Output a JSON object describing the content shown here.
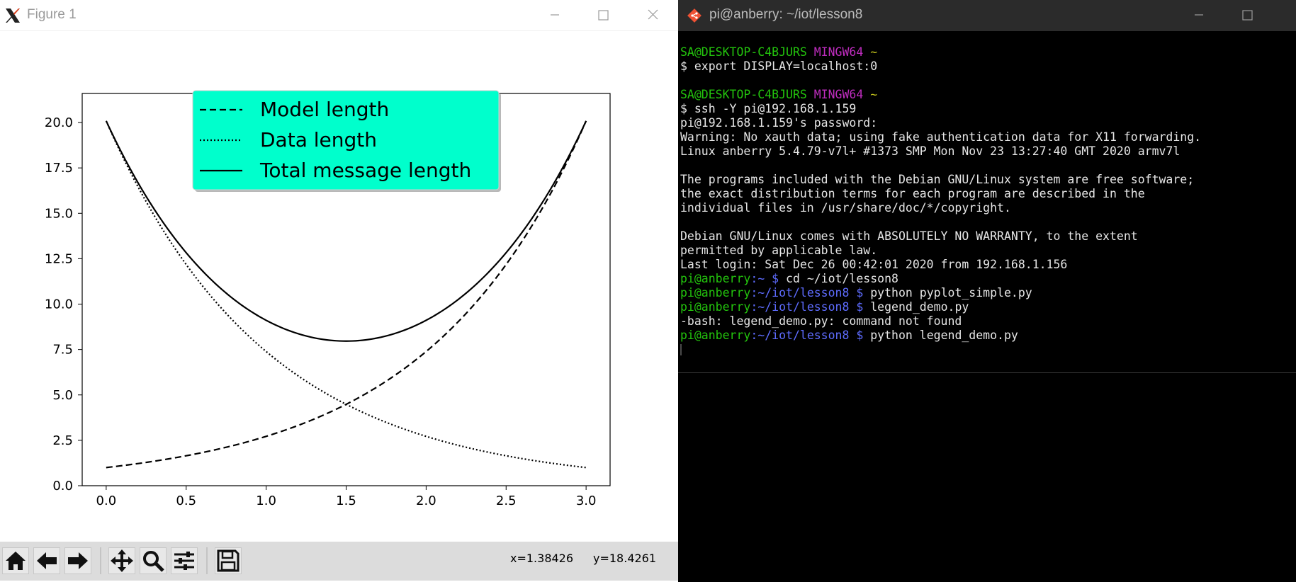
{
  "figure_window": {
    "title": "Figure 1",
    "toolbar": {
      "icons": [
        "home-icon",
        "back-arrow-icon",
        "forward-arrow-icon",
        "pan-move-icon",
        "zoom-magnifier-icon",
        "configure-subplots-icon",
        "save-floppy-icon"
      ],
      "x_readout": "x=1.38426",
      "y_readout": "y=18.4261"
    }
  },
  "chart_data": {
    "type": "line",
    "title": "",
    "xlabel": "",
    "ylabel": "",
    "xlim": [
      -0.15,
      3.15
    ],
    "ylim": [
      0,
      21.6
    ],
    "x_ticks": [
      "0.0",
      "0.5",
      "1.0",
      "1.5",
      "2.0",
      "2.5",
      "3.0"
    ],
    "y_ticks": [
      "0.0",
      "2.5",
      "5.0",
      "7.5",
      "10.0",
      "12.5",
      "15.0",
      "17.5",
      "20.0"
    ],
    "grid": false,
    "legend": {
      "placement": "upper-center",
      "facecolor": "#00ffcc",
      "entries": [
        "Model length",
        "Data length",
        "Total message length"
      ]
    },
    "x": [
      0.0,
      0.25,
      0.5,
      0.75,
      1.0,
      1.25,
      1.5,
      1.75,
      2.0,
      2.25,
      2.5,
      2.75,
      3.0
    ],
    "series": [
      {
        "name": "Model length",
        "style": "dashed",
        "values": [
          1.0,
          1.28,
          1.65,
          2.12,
          2.72,
          3.49,
          4.48,
          5.75,
          7.39,
          9.49,
          12.18,
          15.64,
          20.09
        ]
      },
      {
        "name": "Data length",
        "style": "dotted",
        "values": [
          20.09,
          15.64,
          12.18,
          9.49,
          7.39,
          5.75,
          4.48,
          3.49,
          2.72,
          2.12,
          1.65,
          1.28,
          1.0
        ]
      },
      {
        "name": "Total message length",
        "style": "solid",
        "values": [
          21.09,
          16.92,
          13.83,
          11.61,
          10.11,
          9.24,
          8.96,
          9.24,
          10.11,
          11.61,
          13.83,
          16.92,
          21.09
        ]
      }
    ],
    "colors": {
      "lines": "#000000"
    }
  },
  "terminal_window": {
    "title": "pi@anberry: ~/iot/lesson8",
    "lines": [
      [
        {
          "t": "SA@DESKTOP-C4BJURS ",
          "c": "green"
        },
        {
          "t": "MINGW64 ",
          "c": "magenta"
        },
        {
          "t": "~",
          "c": "yellow"
        }
      ],
      [
        {
          "t": "$ export DISPLAY=localhost:0",
          "c": "white"
        }
      ],
      [
        {
          "t": "",
          "c": "white"
        }
      ],
      [
        {
          "t": "SA@DESKTOP-C4BJURS ",
          "c": "green"
        },
        {
          "t": "MINGW64 ",
          "c": "magenta"
        },
        {
          "t": "~",
          "c": "yellow"
        }
      ],
      [
        {
          "t": "$ ssh -Y pi@192.168.1.159",
          "c": "white"
        }
      ],
      [
        {
          "t": "pi@192.168.1.159's password:",
          "c": "white"
        }
      ],
      [
        {
          "t": "Warning: No xauth data; using fake authentication data for X11 forwarding.",
          "c": "white"
        }
      ],
      [
        {
          "t": "Linux anberry 5.4.79-v7l+ #1373 SMP Mon Nov 23 13:27:40 GMT 2020 armv7l",
          "c": "white"
        }
      ],
      [
        {
          "t": "",
          "c": "white"
        }
      ],
      [
        {
          "t": "The programs included with the Debian GNU/Linux system are free software;",
          "c": "white"
        }
      ],
      [
        {
          "t": "the exact distribution terms for each program are described in the",
          "c": "white"
        }
      ],
      [
        {
          "t": "individual files in /usr/share/doc/*/copyright.",
          "c": "white"
        }
      ],
      [
        {
          "t": "",
          "c": "white"
        }
      ],
      [
        {
          "t": "Debian GNU/Linux comes with ABSOLUTELY NO WARRANTY, to the extent",
          "c": "white"
        }
      ],
      [
        {
          "t": "permitted by applicable law.",
          "c": "white"
        }
      ],
      [
        {
          "t": "Last login: Sat Dec 26 00:42:01 2020 from 192.168.1.156",
          "c": "white"
        }
      ],
      [
        {
          "t": "pi@anberry",
          "c": "green"
        },
        {
          "t": ":~ $ ",
          "c": "blue"
        },
        {
          "t": "cd ~/iot/lesson8",
          "c": "white"
        }
      ],
      [
        {
          "t": "pi@anberry",
          "c": "green"
        },
        {
          "t": ":~/iot/lesson8 $ ",
          "c": "blue"
        },
        {
          "t": "python pyplot_simple.py",
          "c": "white"
        }
      ],
      [
        {
          "t": "pi@anberry",
          "c": "green"
        },
        {
          "t": ":~/iot/lesson8 $ ",
          "c": "blue"
        },
        {
          "t": "legend_demo.py",
          "c": "white"
        }
      ],
      [
        {
          "t": "-bash: legend_demo.py: command not found",
          "c": "white"
        }
      ],
      [
        {
          "t": "pi@anberry",
          "c": "green"
        },
        {
          "t": ":~/iot/lesson8 $ ",
          "c": "blue"
        },
        {
          "t": "python legend_demo.py",
          "c": "white"
        }
      ]
    ]
  }
}
